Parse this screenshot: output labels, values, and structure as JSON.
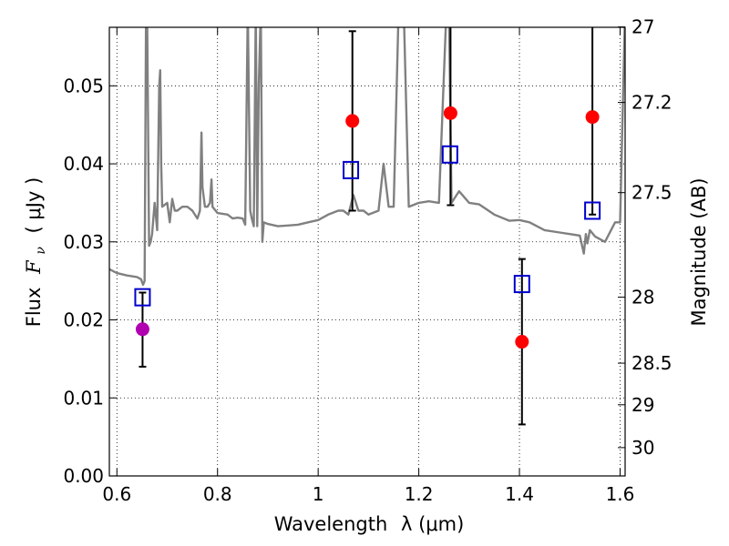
{
  "chart_data": {
    "type": "scatter",
    "xlabel": "Wavelength",
    "xlabel_math": "λ (μm)",
    "ylabel": "Flux",
    "ylabel_math": "F",
    "ylabel_sub": "ν",
    "ylabel_unit": "( μJy )",
    "y2label": "Magnitude (AB)",
    "xlim": [
      0.585,
      1.61
    ],
    "ylim": [
      0.0,
      0.0575
    ],
    "grid": true,
    "grid_style": "dotted",
    "x_ticks": [
      0.6,
      0.8,
      1.0,
      1.2,
      1.4,
      1.6
    ],
    "x_tick_labels": [
      "0.6",
      "0.8",
      "1",
      "1.2",
      "1.4",
      "1.6"
    ],
    "y_ticks": [
      0.0,
      0.01,
      0.02,
      0.03,
      0.04,
      0.05
    ],
    "y_tick_labels": [
      "0.00",
      "0.01",
      "0.02",
      "0.03",
      "0.04",
      "0.05"
    ],
    "y2_ticks": [
      27,
      27.2,
      27.5,
      28,
      28.5,
      29,
      30
    ],
    "y2_tick_labels": [
      "27",
      "27.2",
      "27.5",
      "28",
      "28.5",
      "29",
      "30"
    ],
    "colors": {
      "model": "#808080",
      "observed": "#ff0000",
      "observed_alt": "#b000b0",
      "model_band": "#0000cc",
      "errorbar": "#000000"
    },
    "series": [
      {
        "kind": "model_spectrum",
        "style": "line",
        "x": [
          0.585,
          0.6,
          0.62,
          0.64,
          0.648,
          0.652,
          0.655,
          0.658,
          0.66,
          0.662,
          0.664,
          0.667,
          0.67,
          0.675,
          0.68,
          0.684,
          0.686,
          0.688,
          0.69,
          0.7,
          0.705,
          0.71,
          0.715,
          0.72,
          0.73,
          0.74,
          0.75,
          0.76,
          0.765,
          0.768,
          0.77,
          0.775,
          0.78,
          0.785,
          0.788,
          0.79,
          0.8,
          0.81,
          0.82,
          0.83,
          0.84,
          0.85,
          0.855,
          0.86,
          0.865,
          0.868,
          0.872,
          0.876,
          0.879,
          0.882,
          0.886,
          0.889,
          0.892,
          0.9,
          0.92,
          0.94,
          0.96,
          0.98,
          1.0,
          1.02,
          1.04,
          1.05,
          1.06,
          1.07,
          1.08,
          1.09,
          1.1,
          1.12,
          1.13,
          1.14,
          1.15,
          1.16,
          1.17,
          1.18,
          1.2,
          1.22,
          1.24,
          1.255,
          1.26,
          1.265,
          1.28,
          1.3,
          1.32,
          1.35,
          1.38,
          1.4,
          1.42,
          1.45,
          1.48,
          1.5,
          1.52,
          1.528,
          1.532,
          1.535,
          1.54,
          1.55,
          1.57,
          1.59,
          1.6,
          1.61
        ],
        "y": [
          0.0265,
          0.026,
          0.0257,
          0.0255,
          0.0252,
          0.0245,
          0.025,
          0.06,
          0.06,
          0.045,
          0.0295,
          0.03,
          0.031,
          0.035,
          0.0315,
          0.05,
          0.052,
          0.04,
          0.0345,
          0.035,
          0.0325,
          0.0355,
          0.034,
          0.034,
          0.0345,
          0.0345,
          0.034,
          0.033,
          0.034,
          0.044,
          0.037,
          0.0345,
          0.0345,
          0.035,
          0.038,
          0.0345,
          0.0337,
          0.0336,
          0.0335,
          0.033,
          0.0331,
          0.033,
          0.0322,
          0.06,
          0.034,
          0.033,
          0.032,
          0.06,
          0.032,
          0.05,
          0.06,
          0.03,
          0.0325,
          0.0323,
          0.032,
          0.0321,
          0.0322,
          0.0325,
          0.0328,
          0.0335,
          0.034,
          0.034,
          0.0335,
          0.036,
          0.034,
          0.034,
          0.0335,
          0.034,
          0.04,
          0.0345,
          0.0345,
          0.06,
          0.06,
          0.0345,
          0.035,
          0.0352,
          0.035,
          0.06,
          0.06,
          0.035,
          0.0365,
          0.035,
          0.0348,
          0.0335,
          0.0327,
          0.0328,
          0.0325,
          0.0315,
          0.0312,
          0.031,
          0.0308,
          0.0285,
          0.031,
          0.0298,
          0.0315,
          0.0307,
          0.03,
          0.0325,
          0.0325,
          0.06
        ]
      },
      {
        "kind": "model_band_flux",
        "style": "open_square",
        "x": [
          0.651,
          1.065,
          1.262,
          1.405,
          1.545
        ],
        "y": [
          0.0229,
          0.0392,
          0.0412,
          0.0246,
          0.034
        ]
      },
      {
        "kind": "observed",
        "style": "filled_circle",
        "x": [
          0.651,
          1.068,
          1.263,
          1.405,
          1.545
        ],
        "y": [
          0.0188,
          0.0455,
          0.0465,
          0.0172,
          0.046
        ],
        "color_keys": [
          "observed_alt",
          "observed",
          "observed",
          "observed",
          "observed"
        ],
        "err_low": [
          0.014,
          0.034,
          0.0347,
          0.0066,
          0.0335
        ],
        "err_high": [
          0.0235,
          0.057,
          0.06,
          0.0278,
          0.06
        ]
      }
    ]
  }
}
